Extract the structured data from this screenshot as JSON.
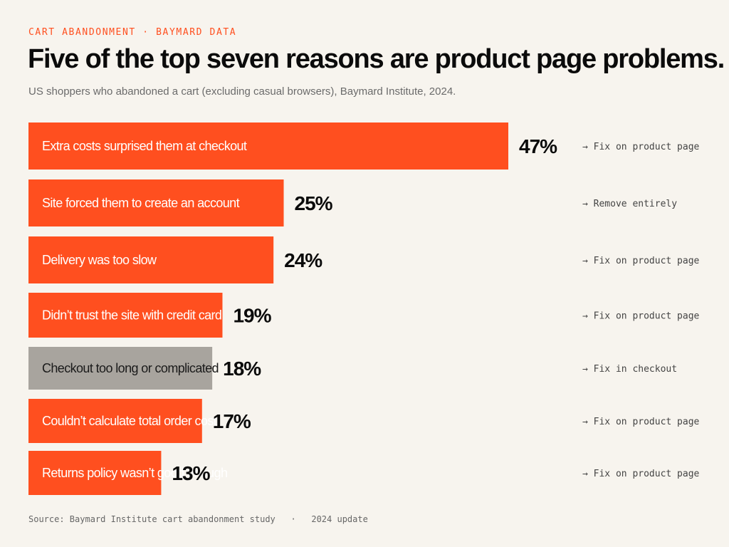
{
  "header": {
    "kicker": "CART ABANDONMENT · BAYMARD DATA",
    "title": "Five of the top seven reasons are product page problems.",
    "subtitle": "US shoppers who abandoned a cart (excluding casual browsers), Baymard Institute, 2024."
  },
  "colors": {
    "accent": "#ff4f1f",
    "neutral": "#a8a49e",
    "background": "#f7f4ee"
  },
  "chart_data": {
    "type": "bar",
    "orientation": "horizontal",
    "title": "Five of the top seven reasons are product page problems.",
    "xlim": [
      0,
      47
    ],
    "grid": false,
    "categories": [
      "Extra costs surprised them at checkout",
      "Site forced them to create an account",
      "Delivery was too slow",
      "Didn’t trust the site with credit card",
      "Checkout too long or complicated",
      "Couldn’t calculate total order cost",
      "Returns policy wasn’t good enough"
    ],
    "values": [
      47,
      25,
      24,
      19,
      18,
      17,
      13
    ],
    "value_labels": [
      "47%",
      "25%",
      "24%",
      "19%",
      "18%",
      "17%",
      "13%"
    ],
    "actions": [
      "→ Fix on product page",
      "→ Remove entirely",
      "→ Fix on product page",
      "→ Fix on product page",
      "→ Fix in checkout",
      "→ Fix on product page",
      "→ Fix on product page"
    ],
    "highlight": [
      true,
      true,
      true,
      true,
      false,
      true,
      true
    ]
  },
  "footer": {
    "source": "Source: Baymard Institute cart abandonment study   ·   2024 update"
  }
}
